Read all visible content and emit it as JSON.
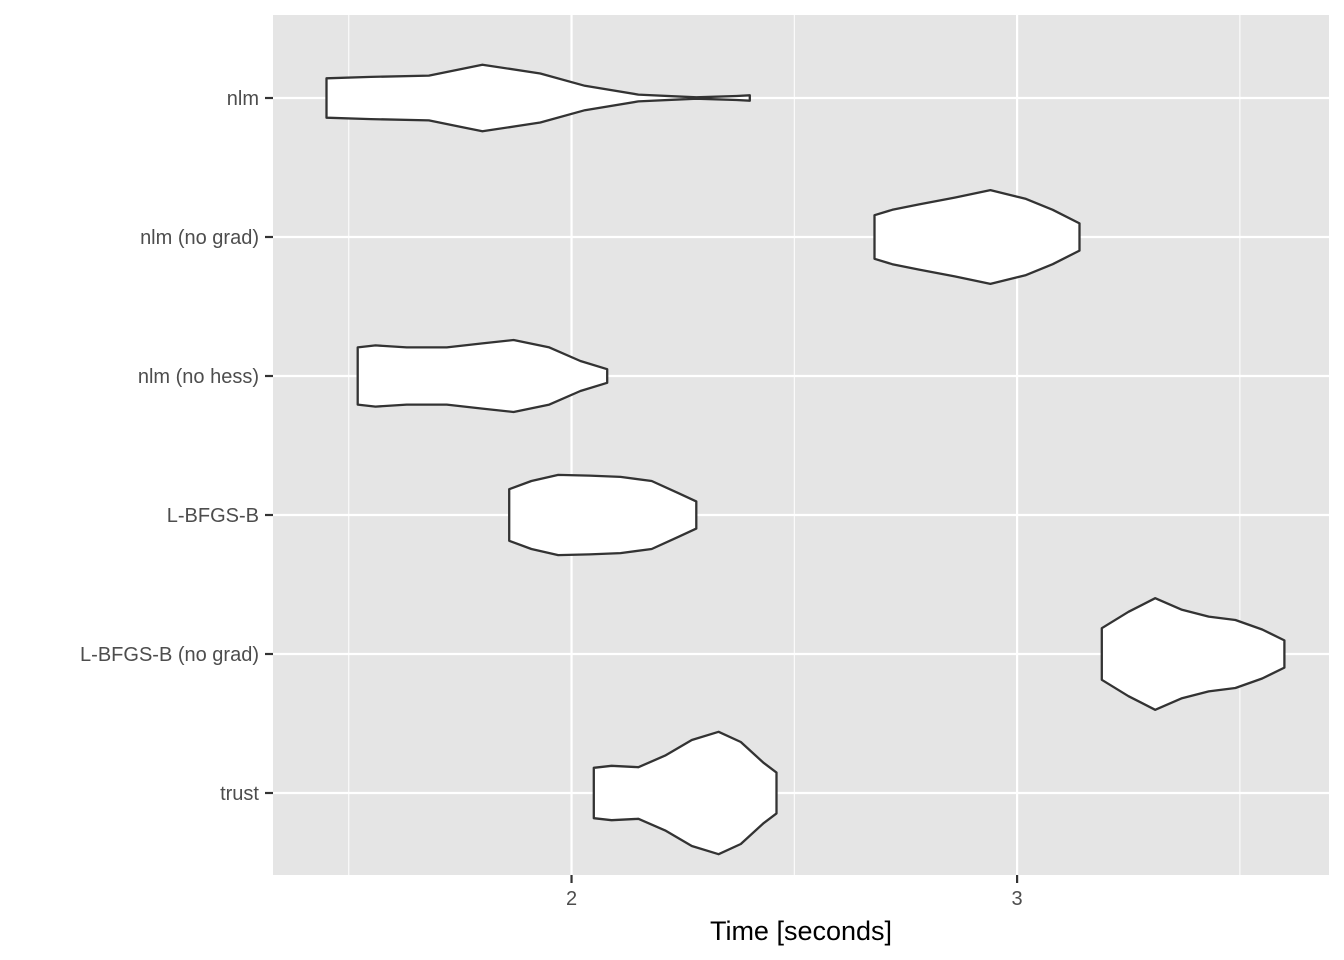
{
  "chart_data": {
    "type": "violin",
    "orientation": "horizontal",
    "xlabel": "Time [seconds]",
    "ylabel": "",
    "xlim": [
      1.33,
      3.7
    ],
    "x_ticks": [
      2,
      3
    ],
    "x_tick_labels": [
      "2",
      "3"
    ],
    "x_minor_gridlines": [
      1.5,
      2.5,
      3.5
    ],
    "grid": true,
    "legend": "none",
    "colors": {
      "panel": "#e5e5e5",
      "grid": "#ffffff",
      "violin_fill": "#ffffff",
      "violin_stroke": "#333333",
      "tick_label": "#4d4d4d"
    },
    "categories": [
      "nlm",
      "nlm (no grad)",
      "nlm (no hess)",
      "L-BFGS-B",
      "L-BFGS-B (no grad)",
      "trust"
    ],
    "series": [
      {
        "category": "nlm",
        "min": 1.45,
        "max": 2.4,
        "density": [
          [
            1.45,
            0.29
          ],
          [
            1.55,
            0.31
          ],
          [
            1.68,
            0.33
          ],
          [
            1.8,
            0.49
          ],
          [
            1.93,
            0.36
          ],
          [
            2.03,
            0.18
          ],
          [
            2.15,
            0.05
          ],
          [
            2.28,
            0.01
          ],
          [
            2.37,
            0.03
          ],
          [
            2.4,
            0.04
          ]
        ]
      },
      {
        "category": "nlm (no grad)",
        "min": 2.68,
        "max": 3.14,
        "density": [
          [
            2.68,
            0.32
          ],
          [
            2.72,
            0.4
          ],
          [
            2.78,
            0.48
          ],
          [
            2.86,
            0.58
          ],
          [
            2.94,
            0.69
          ],
          [
            3.02,
            0.56
          ],
          [
            3.08,
            0.4
          ],
          [
            3.14,
            0.2
          ]
        ]
      },
      {
        "category": "nlm (no hess)",
        "min": 1.52,
        "max": 2.08,
        "density": [
          [
            1.52,
            0.42
          ],
          [
            1.56,
            0.45
          ],
          [
            1.63,
            0.42
          ],
          [
            1.72,
            0.42
          ],
          [
            1.8,
            0.48
          ],
          [
            1.87,
            0.53
          ],
          [
            1.95,
            0.42
          ],
          [
            2.02,
            0.22
          ],
          [
            2.08,
            0.1
          ]
        ]
      },
      {
        "category": "L-BFGS-B",
        "min": 1.86,
        "max": 2.28,
        "density": [
          [
            1.86,
            0.38
          ],
          [
            1.91,
            0.5
          ],
          [
            1.97,
            0.59
          ],
          [
            2.04,
            0.58
          ],
          [
            2.11,
            0.56
          ],
          [
            2.18,
            0.5
          ],
          [
            2.24,
            0.32
          ],
          [
            2.28,
            0.2
          ]
        ]
      },
      {
        "category": "L-BFGS-B (no grad)",
        "min": 3.19,
        "max": 3.6,
        "density": [
          [
            3.19,
            0.38
          ],
          [
            3.25,
            0.62
          ],
          [
            3.31,
            0.82
          ],
          [
            3.37,
            0.65
          ],
          [
            3.43,
            0.55
          ],
          [
            3.49,
            0.5
          ],
          [
            3.55,
            0.36
          ],
          [
            3.6,
            0.2
          ]
        ]
      },
      {
        "category": "trust",
        "min": 2.05,
        "max": 2.46,
        "density": [
          [
            2.05,
            0.37
          ],
          [
            2.09,
            0.4
          ],
          [
            2.15,
            0.38
          ],
          [
            2.21,
            0.55
          ],
          [
            2.27,
            0.78
          ],
          [
            2.33,
            0.9
          ],
          [
            2.38,
            0.75
          ],
          [
            2.43,
            0.45
          ],
          [
            2.46,
            0.3
          ]
        ]
      }
    ]
  }
}
